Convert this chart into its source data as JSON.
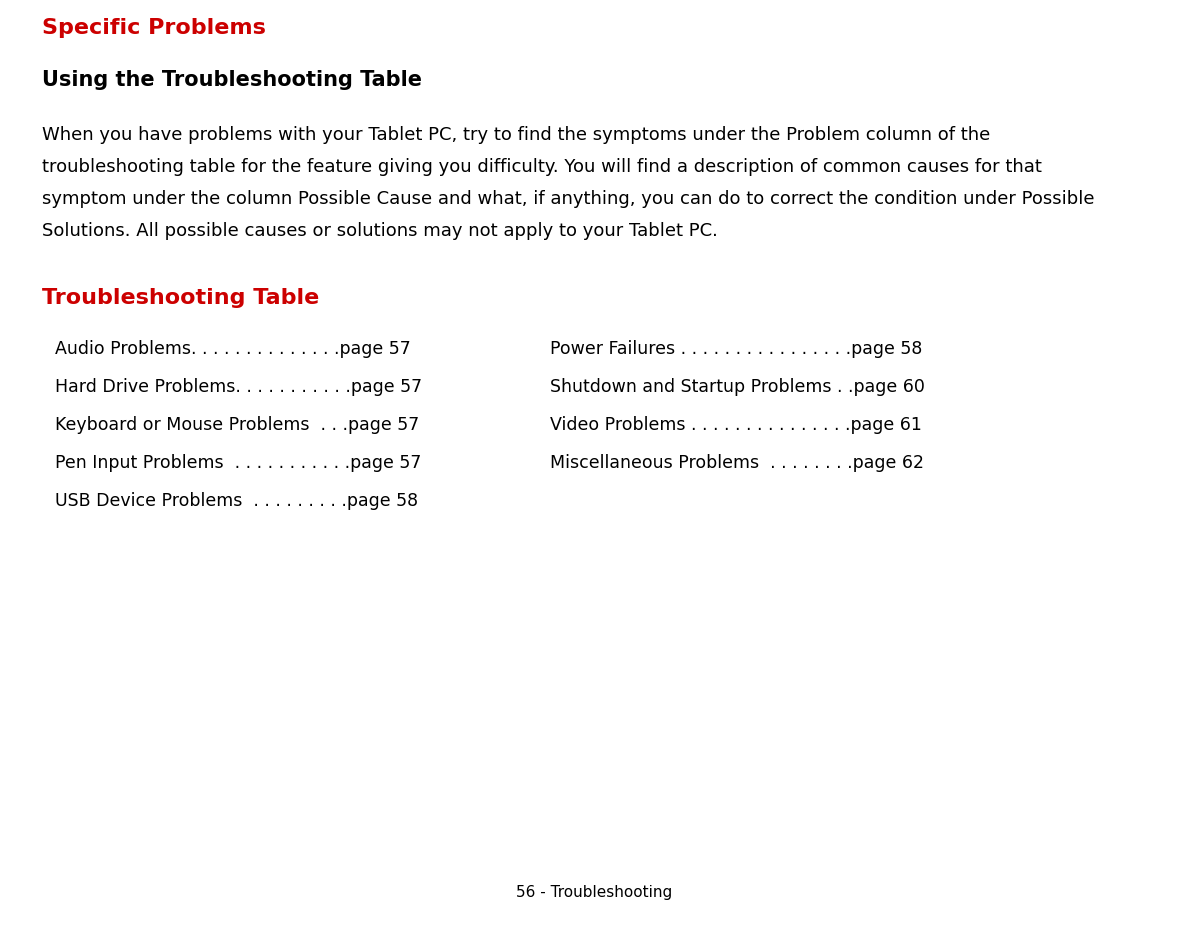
{
  "bg_color": "#ffffff",
  "red_color": "#cc0000",
  "black_color": "#000000",
  "title_specific": "Specific Problems",
  "title_specific_fontsize": 16,
  "subtitle": "Using the Troubleshooting Table",
  "subtitle_fontsize": 15,
  "body_lines": [
    "When you have problems with your Tablet PC, try to find the symptoms under the Problem column of the",
    "troubleshooting table for the feature giving you difficulty. You will find a description of common causes for that",
    "symptom under the column Possible Cause and what, if anything, you can do to correct the condition under Possible",
    "Solutions. All possible causes or solutions may not apply to your Tablet PC."
  ],
  "body_fontsize": 13,
  "section_title": "Troubleshooting Table",
  "section_title_fontsize": 16,
  "left_items": [
    "Audio Problems. . . . . . . . . . . . . .page 57",
    "Hard Drive Problems. . . . . . . . . . .page 57",
    "Keyboard or Mouse Problems  . . .page 57",
    "Pen Input Problems  . . . . . . . . . . .page 57",
    "USB Device Problems  . . . . . . . . .page 58"
  ],
  "right_items": [
    "Power Failures . . . . . . . . . . . . . . . .page 58",
    "Shutdown and Startup Problems . .page 60",
    "Video Problems . . . . . . . . . . . . . . .page 61",
    "Miscellaneous Problems  . . . . . . . .page 62"
  ],
  "table_fontsize": 12.5,
  "footer_text": "56 - Troubleshooting",
  "footer_fontsize": 11
}
